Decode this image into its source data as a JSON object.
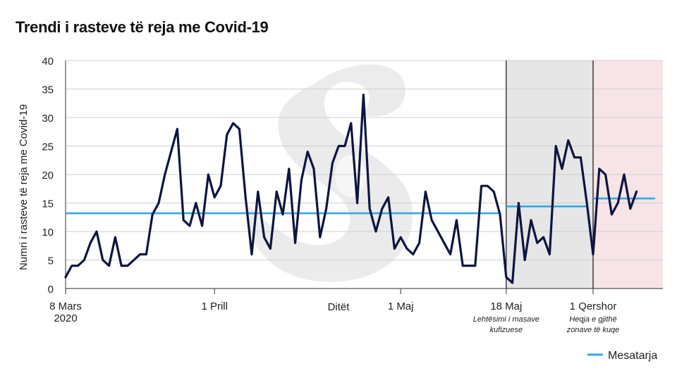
{
  "chart_data": {
    "type": "line",
    "title": "Trendi i rasteve të reja me Covid-19",
    "xlabel": "Ditët",
    "ylabel": "Numri i rasteve të reja me Covid-19",
    "ylim": [
      0,
      40
    ],
    "yticks": [
      0,
      5,
      10,
      15,
      20,
      25,
      30,
      35,
      40
    ],
    "grid": true,
    "x_start": "2020-03-08",
    "x_end": "2020-06-11",
    "xticks": [
      {
        "date": "2020-03-08",
        "label": "8 Mars",
        "label2": "2020"
      },
      {
        "date": "2020-04-01",
        "label": "1 Prill",
        "label2": ""
      },
      {
        "date": "2020-05-01",
        "label": "1 Maj",
        "label2": ""
      },
      {
        "date": "2020-05-18",
        "label": "18 Maj",
        "label2": ""
      },
      {
        "date": "2020-06-01",
        "label": "1 Qershor",
        "label2": ""
      }
    ],
    "series": [
      {
        "values": [
          2,
          4,
          4,
          5,
          8,
          10,
          5,
          4,
          9,
          4,
          4,
          5,
          6,
          6,
          13,
          15,
          20,
          24,
          28,
          12,
          11,
          15,
          11,
          20,
          16,
          18,
          27,
          29,
          28,
          16,
          6,
          17,
          9,
          7,
          17,
          13,
          21,
          8,
          19,
          24,
          21,
          9,
          14,
          22,
          25,
          25,
          29,
          15,
          34,
          14,
          10,
          14,
          16,
          7,
          9,
          7,
          6,
          8,
          17,
          12,
          10,
          8,
          6,
          12,
          4,
          4,
          4,
          18,
          18,
          17,
          13,
          2,
          1,
          15,
          5,
          12,
          8,
          9,
          6,
          25,
          21,
          26,
          23,
          23,
          15,
          6,
          21,
          20,
          13,
          15,
          20,
          14,
          17
        ],
        "color": "#0d1540"
      },
      {
        "name": "Mesatarja",
        "segments": [
          {
            "from": "2020-03-08",
            "to": "2020-05-17",
            "value": 13.2
          },
          {
            "from": "2020-05-18",
            "to": "2020-05-31",
            "value": 14.4
          },
          {
            "from": "2020-06-01",
            "to": "2020-06-11",
            "value": 15.8
          }
        ],
        "color": "#35a8e0"
      }
    ],
    "shaded_periods": [
      {
        "from": "2020-05-18",
        "to": "2020-06-01",
        "color": "#e6e6e6",
        "label_line1": "Lehtësimi i masave",
        "label_line2": "kufizuese"
      },
      {
        "from": "2020-06-01",
        "to": "2020-06-11",
        "color": "#f7e4e6",
        "label_line1": "Heqja e gjithë",
        "label_line2": "zonave të kuqe"
      }
    ],
    "legend": {
      "position": "bottom-right",
      "label": "Mesatarja"
    }
  }
}
